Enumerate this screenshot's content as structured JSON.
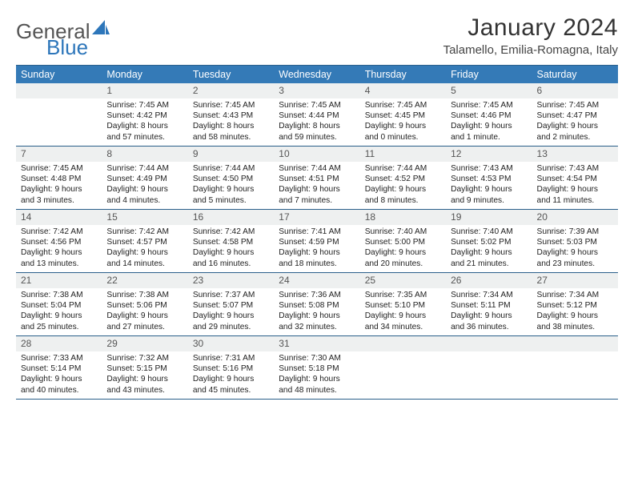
{
  "logo": {
    "text1": "General",
    "text2": "Blue"
  },
  "header": {
    "month_title": "January 2024",
    "location": "Talamello, Emilia-Romagna, Italy"
  },
  "colors": {
    "header_bg": "#347ab7",
    "border": "#2a5f8a",
    "daynum_bg": "#eef0f0"
  },
  "days_of_week": [
    "Sunday",
    "Monday",
    "Tuesday",
    "Wednesday",
    "Thursday",
    "Friday",
    "Saturday"
  ],
  "weeks": [
    [
      {
        "n": "",
        "sunrise": "",
        "sunset": "",
        "daylight1": "",
        "daylight2": ""
      },
      {
        "n": "1",
        "sunrise": "Sunrise: 7:45 AM",
        "sunset": "Sunset: 4:42 PM",
        "daylight1": "Daylight: 8 hours",
        "daylight2": "and 57 minutes."
      },
      {
        "n": "2",
        "sunrise": "Sunrise: 7:45 AM",
        "sunset": "Sunset: 4:43 PM",
        "daylight1": "Daylight: 8 hours",
        "daylight2": "and 58 minutes."
      },
      {
        "n": "3",
        "sunrise": "Sunrise: 7:45 AM",
        "sunset": "Sunset: 4:44 PM",
        "daylight1": "Daylight: 8 hours",
        "daylight2": "and 59 minutes."
      },
      {
        "n": "4",
        "sunrise": "Sunrise: 7:45 AM",
        "sunset": "Sunset: 4:45 PM",
        "daylight1": "Daylight: 9 hours",
        "daylight2": "and 0 minutes."
      },
      {
        "n": "5",
        "sunrise": "Sunrise: 7:45 AM",
        "sunset": "Sunset: 4:46 PM",
        "daylight1": "Daylight: 9 hours",
        "daylight2": "and 1 minute."
      },
      {
        "n": "6",
        "sunrise": "Sunrise: 7:45 AM",
        "sunset": "Sunset: 4:47 PM",
        "daylight1": "Daylight: 9 hours",
        "daylight2": "and 2 minutes."
      }
    ],
    [
      {
        "n": "7",
        "sunrise": "Sunrise: 7:45 AM",
        "sunset": "Sunset: 4:48 PM",
        "daylight1": "Daylight: 9 hours",
        "daylight2": "and 3 minutes."
      },
      {
        "n": "8",
        "sunrise": "Sunrise: 7:44 AM",
        "sunset": "Sunset: 4:49 PM",
        "daylight1": "Daylight: 9 hours",
        "daylight2": "and 4 minutes."
      },
      {
        "n": "9",
        "sunrise": "Sunrise: 7:44 AM",
        "sunset": "Sunset: 4:50 PM",
        "daylight1": "Daylight: 9 hours",
        "daylight2": "and 5 minutes."
      },
      {
        "n": "10",
        "sunrise": "Sunrise: 7:44 AM",
        "sunset": "Sunset: 4:51 PM",
        "daylight1": "Daylight: 9 hours",
        "daylight2": "and 7 minutes."
      },
      {
        "n": "11",
        "sunrise": "Sunrise: 7:44 AM",
        "sunset": "Sunset: 4:52 PM",
        "daylight1": "Daylight: 9 hours",
        "daylight2": "and 8 minutes."
      },
      {
        "n": "12",
        "sunrise": "Sunrise: 7:43 AM",
        "sunset": "Sunset: 4:53 PM",
        "daylight1": "Daylight: 9 hours",
        "daylight2": "and 9 minutes."
      },
      {
        "n": "13",
        "sunrise": "Sunrise: 7:43 AM",
        "sunset": "Sunset: 4:54 PM",
        "daylight1": "Daylight: 9 hours",
        "daylight2": "and 11 minutes."
      }
    ],
    [
      {
        "n": "14",
        "sunrise": "Sunrise: 7:42 AM",
        "sunset": "Sunset: 4:56 PM",
        "daylight1": "Daylight: 9 hours",
        "daylight2": "and 13 minutes."
      },
      {
        "n": "15",
        "sunrise": "Sunrise: 7:42 AM",
        "sunset": "Sunset: 4:57 PM",
        "daylight1": "Daylight: 9 hours",
        "daylight2": "and 14 minutes."
      },
      {
        "n": "16",
        "sunrise": "Sunrise: 7:42 AM",
        "sunset": "Sunset: 4:58 PM",
        "daylight1": "Daylight: 9 hours",
        "daylight2": "and 16 minutes."
      },
      {
        "n": "17",
        "sunrise": "Sunrise: 7:41 AM",
        "sunset": "Sunset: 4:59 PM",
        "daylight1": "Daylight: 9 hours",
        "daylight2": "and 18 minutes."
      },
      {
        "n": "18",
        "sunrise": "Sunrise: 7:40 AM",
        "sunset": "Sunset: 5:00 PM",
        "daylight1": "Daylight: 9 hours",
        "daylight2": "and 20 minutes."
      },
      {
        "n": "19",
        "sunrise": "Sunrise: 7:40 AM",
        "sunset": "Sunset: 5:02 PM",
        "daylight1": "Daylight: 9 hours",
        "daylight2": "and 21 minutes."
      },
      {
        "n": "20",
        "sunrise": "Sunrise: 7:39 AM",
        "sunset": "Sunset: 5:03 PM",
        "daylight1": "Daylight: 9 hours",
        "daylight2": "and 23 minutes."
      }
    ],
    [
      {
        "n": "21",
        "sunrise": "Sunrise: 7:38 AM",
        "sunset": "Sunset: 5:04 PM",
        "daylight1": "Daylight: 9 hours",
        "daylight2": "and 25 minutes."
      },
      {
        "n": "22",
        "sunrise": "Sunrise: 7:38 AM",
        "sunset": "Sunset: 5:06 PM",
        "daylight1": "Daylight: 9 hours",
        "daylight2": "and 27 minutes."
      },
      {
        "n": "23",
        "sunrise": "Sunrise: 7:37 AM",
        "sunset": "Sunset: 5:07 PM",
        "daylight1": "Daylight: 9 hours",
        "daylight2": "and 29 minutes."
      },
      {
        "n": "24",
        "sunrise": "Sunrise: 7:36 AM",
        "sunset": "Sunset: 5:08 PM",
        "daylight1": "Daylight: 9 hours",
        "daylight2": "and 32 minutes."
      },
      {
        "n": "25",
        "sunrise": "Sunrise: 7:35 AM",
        "sunset": "Sunset: 5:10 PM",
        "daylight1": "Daylight: 9 hours",
        "daylight2": "and 34 minutes."
      },
      {
        "n": "26",
        "sunrise": "Sunrise: 7:34 AM",
        "sunset": "Sunset: 5:11 PM",
        "daylight1": "Daylight: 9 hours",
        "daylight2": "and 36 minutes."
      },
      {
        "n": "27",
        "sunrise": "Sunrise: 7:34 AM",
        "sunset": "Sunset: 5:12 PM",
        "daylight1": "Daylight: 9 hours",
        "daylight2": "and 38 minutes."
      }
    ],
    [
      {
        "n": "28",
        "sunrise": "Sunrise: 7:33 AM",
        "sunset": "Sunset: 5:14 PM",
        "daylight1": "Daylight: 9 hours",
        "daylight2": "and 40 minutes."
      },
      {
        "n": "29",
        "sunrise": "Sunrise: 7:32 AM",
        "sunset": "Sunset: 5:15 PM",
        "daylight1": "Daylight: 9 hours",
        "daylight2": "and 43 minutes."
      },
      {
        "n": "30",
        "sunrise": "Sunrise: 7:31 AM",
        "sunset": "Sunset: 5:16 PM",
        "daylight1": "Daylight: 9 hours",
        "daylight2": "and 45 minutes."
      },
      {
        "n": "31",
        "sunrise": "Sunrise: 7:30 AM",
        "sunset": "Sunset: 5:18 PM",
        "daylight1": "Daylight: 9 hours",
        "daylight2": "and 48 minutes."
      },
      {
        "n": "",
        "sunrise": "",
        "sunset": "",
        "daylight1": "",
        "daylight2": ""
      },
      {
        "n": "",
        "sunrise": "",
        "sunset": "",
        "daylight1": "",
        "daylight2": ""
      },
      {
        "n": "",
        "sunrise": "",
        "sunset": "",
        "daylight1": "",
        "daylight2": ""
      }
    ]
  ]
}
